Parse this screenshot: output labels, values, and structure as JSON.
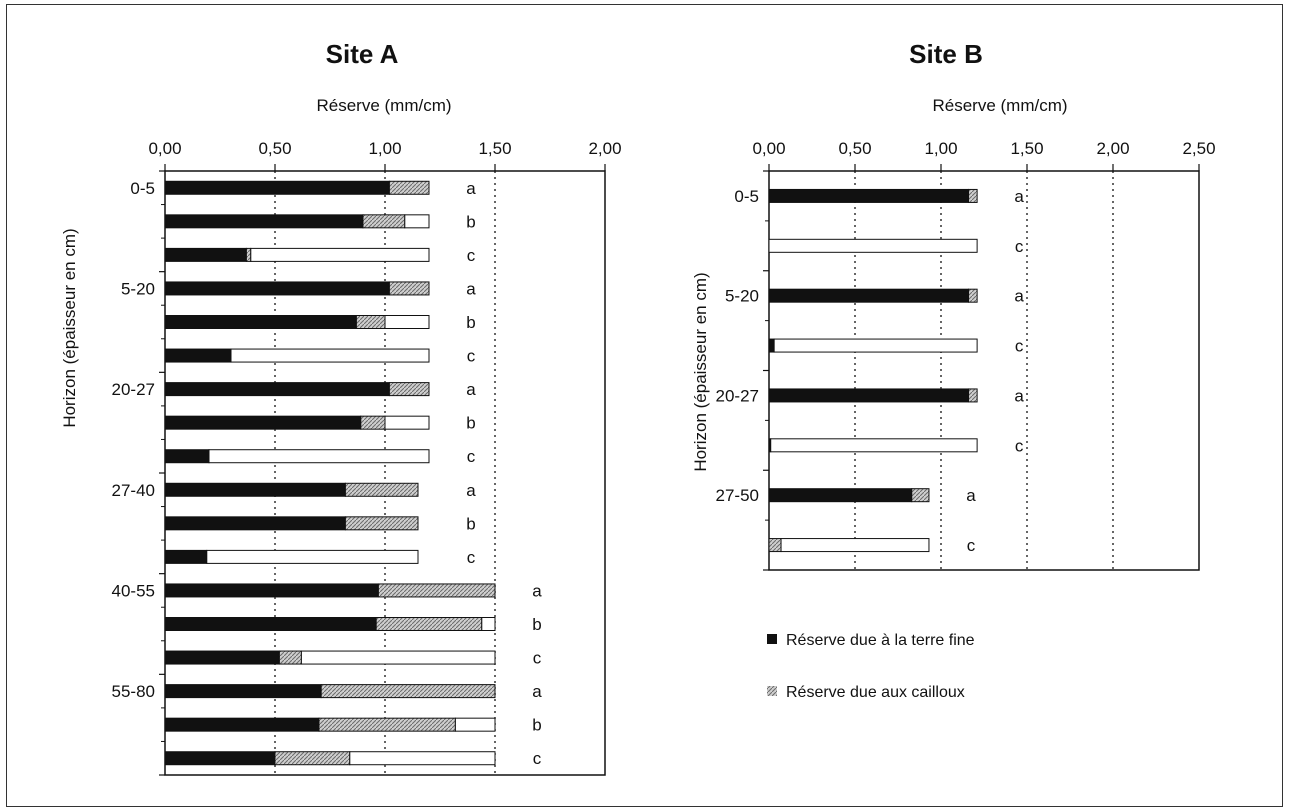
{
  "colors": {
    "fine": "#111111",
    "stone": "#b8b8b8",
    "empty": "#ffffff",
    "grid": "#333333"
  },
  "legend": {
    "fine_label": "Réserve due à la terre fine",
    "stone_label": "Réserve due aux cailloux"
  },
  "chart_data": [
    {
      "type": "bar",
      "orientation": "horizontal",
      "stacked": true,
      "title": "Site A",
      "xlabel": "Réserve (mm/cm)",
      "ylabel": "Horizon (épaisseur en cm)",
      "xlim": [
        0,
        2
      ],
      "xticks": [
        "0,00",
        "0,50",
        "1,00",
        "1,50",
        "2,00"
      ],
      "xtick_values": [
        0,
        0.5,
        1,
        1.5,
        2
      ],
      "gridlines_x": [
        0.5,
        1,
        1.5
      ],
      "groups": [
        {
          "horizon": "0-5",
          "bars": [
            {
              "label": "a",
              "fine": 1.02,
              "stone": 0.18,
              "empty": 0
            },
            {
              "label": "b",
              "fine": 0.9,
              "stone": 0.19,
              "empty": 0.11
            },
            {
              "label": "c",
              "fine": 0.37,
              "stone": 0.02,
              "empty": 0.81
            }
          ]
        },
        {
          "horizon": "5-20",
          "bars": [
            {
              "label": "a",
              "fine": 1.02,
              "stone": 0.18,
              "empty": 0
            },
            {
              "label": "b",
              "fine": 0.87,
              "stone": 0.13,
              "empty": 0.2
            },
            {
              "label": "c",
              "fine": 0.3,
              "stone": 0,
              "empty": 0.9
            }
          ]
        },
        {
          "horizon": "20-27",
          "bars": [
            {
              "label": "a",
              "fine": 1.02,
              "stone": 0.18,
              "empty": 0
            },
            {
              "label": "b",
              "fine": 0.89,
              "stone": 0.11,
              "empty": 0.2
            },
            {
              "label": "c",
              "fine": 0.2,
              "stone": 0,
              "empty": 1.0
            }
          ]
        },
        {
          "horizon": "27-40",
          "bars": [
            {
              "label": "a",
              "fine": 0.82,
              "stone": 0.33,
              "empty": 0
            },
            {
              "label": "b",
              "fine": 0.82,
              "stone": 0.33,
              "empty": 0
            },
            {
              "label": "c",
              "fine": 0.19,
              "stone": 0,
              "empty": 0.96
            }
          ]
        },
        {
          "horizon": "40-55",
          "bars": [
            {
              "label": "a",
              "fine": 0.97,
              "stone": 0.53,
              "empty": 0
            },
            {
              "label": "b",
              "fine": 0.96,
              "stone": 0.48,
              "empty": 0.06
            },
            {
              "label": "c",
              "fine": 0.52,
              "stone": 0.1,
              "empty": 0.88
            }
          ]
        },
        {
          "horizon": "55-80",
          "bars": [
            {
              "label": "a",
              "fine": 0.71,
              "stone": 0.79,
              "empty": 0
            },
            {
              "label": "b",
              "fine": 0.7,
              "stone": 0.62,
              "empty": 0.18
            },
            {
              "label": "c",
              "fine": 0.5,
              "stone": 0.34,
              "empty": 0.66
            }
          ]
        }
      ]
    },
    {
      "type": "bar",
      "orientation": "horizontal",
      "stacked": true,
      "title": "Site B",
      "xlabel": "Réserve (mm/cm)",
      "ylabel": "Horizon (épaisseur en cm)",
      "xlim": [
        0,
        2.5
      ],
      "xticks": [
        "0,00",
        "0,50",
        "1,00",
        "1,50",
        "2,00",
        "2,50"
      ],
      "xtick_values": [
        0,
        0.5,
        1,
        1.5,
        2,
        2.5
      ],
      "gridlines_x": [
        0.5,
        1,
        1.5,
        2
      ],
      "groups": [
        {
          "horizon": "0-5",
          "bars": [
            {
              "label": "a",
              "fine": 1.16,
              "stone": 0.05,
              "empty": 0
            },
            {
              "label": "c",
              "fine": 0,
              "stone": 0,
              "empty": 1.21
            }
          ]
        },
        {
          "horizon": "5-20",
          "bars": [
            {
              "label": "a",
              "fine": 1.16,
              "stone": 0.05,
              "empty": 0
            },
            {
              "label": "c",
              "fine": 0.03,
              "stone": 0,
              "empty": 1.18
            }
          ]
        },
        {
          "horizon": "20-27",
          "bars": [
            {
              "label": "a",
              "fine": 1.16,
              "stone": 0.05,
              "empty": 0
            },
            {
              "label": "c",
              "fine": 0.01,
              "stone": 0,
              "empty": 1.2
            }
          ]
        },
        {
          "horizon": "27-50",
          "bars": [
            {
              "label": "a",
              "fine": 0.83,
              "stone": 0.1,
              "empty": 0
            },
            {
              "label": "c",
              "fine": 0,
              "stone": 0.07,
              "empty": 0.86
            }
          ]
        }
      ]
    }
  ]
}
